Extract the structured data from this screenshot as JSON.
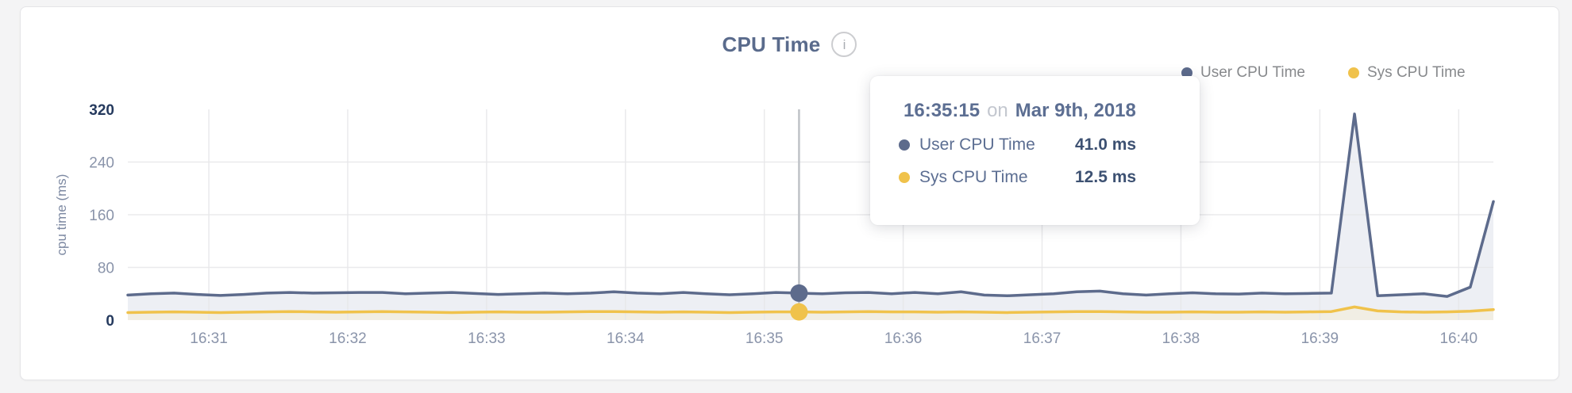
{
  "header": {
    "title": "CPU Time",
    "info_glyph": "i"
  },
  "legend": [
    {
      "label": "User CPU Time",
      "color": "#5d6b8c"
    },
    {
      "label": "Sys CPU Time",
      "color": "#f0c24b"
    }
  ],
  "tooltip": {
    "time": "16:35:15",
    "connector": "on",
    "date": "Mar 9th, 2018",
    "rows": [
      {
        "label": "User CPU Time",
        "value": "41.0 ms",
        "color": "#5d6b8c"
      },
      {
        "label": "Sys CPU Time",
        "value": "12.5 ms",
        "color": "#f0c24b"
      }
    ]
  },
  "colors": {
    "grid": "#e7e7e9",
    "crosshair": "#bfc2c7",
    "axis_strong": "#253a5e",
    "axis_muted": "#8a94aa",
    "tick_text": "#8a94aa"
  },
  "chart_data": {
    "type": "line",
    "title": "CPU Time",
    "xlabel": "",
    "ylabel": "cpu time (ms)",
    "ylim": [
      0,
      320
    ],
    "yticks": [
      0,
      80,
      160,
      240,
      320
    ],
    "grid_yticks": [
      80,
      160,
      240
    ],
    "xticks": [
      "16:31",
      "16:32",
      "16:33",
      "16:34",
      "16:35",
      "16:36",
      "16:37",
      "16:38",
      "16:39",
      "16:40"
    ],
    "x_start_time": "16:30:25",
    "x_end_time": "16:40:15",
    "sample_interval_s": 10,
    "first_tick_offset_s": 35,
    "span_s": 590,
    "grid": true,
    "legend_position": "top-right",
    "series": [
      {
        "name": "User CPU Time",
        "color": "#5d6b8c",
        "fill": "#edeff4",
        "values": [
          38,
          40,
          41,
          39,
          37.5,
          39,
          41,
          42,
          41,
          41.5,
          42,
          42,
          40,
          41,
          42,
          40.5,
          39,
          40,
          41,
          40,
          41,
          43,
          41,
          40,
          42,
          40,
          38.5,
          40,
          42,
          41,
          40,
          41.5,
          42,
          40,
          42,
          40,
          43,
          38,
          37,
          38.5,
          40,
          43,
          44,
          40,
          38,
          40,
          41.5,
          40,
          39.5,
          41,
          40,
          40.5,
          41,
          313,
          37,
          38.5,
          40,
          36,
          50,
          180
        ]
      },
      {
        "name": "Sys CPU Time",
        "color": "#f0c24b",
        "fill": "#f1eee4",
        "values": [
          11.5,
          12,
          12.5,
          12,
          11.5,
          12,
          12.5,
          13,
          12.5,
          12,
          12.5,
          13,
          12.5,
          12,
          11.5,
          12,
          12.5,
          12,
          12,
          12.5,
          13,
          13,
          12.5,
          12,
          12.5,
          12,
          11.5,
          12,
          12.5,
          12.5,
          12,
          12.5,
          13,
          12.5,
          12.5,
          12,
          12.5,
          12,
          11.5,
          12,
          12.5,
          13,
          13,
          12.5,
          12,
          12,
          12.5,
          12,
          12,
          12.5,
          12,
          12.5,
          13,
          20,
          14,
          12.5,
          12,
          12.5,
          13.5,
          16
        ]
      }
    ],
    "highlight": {
      "time": "16:35:15",
      "date": "Mar 9th, 2018",
      "index": 29,
      "values": {
        "User CPU Time": 41.0,
        "Sys CPU Time": 12.5
      },
      "unit": "ms"
    }
  }
}
